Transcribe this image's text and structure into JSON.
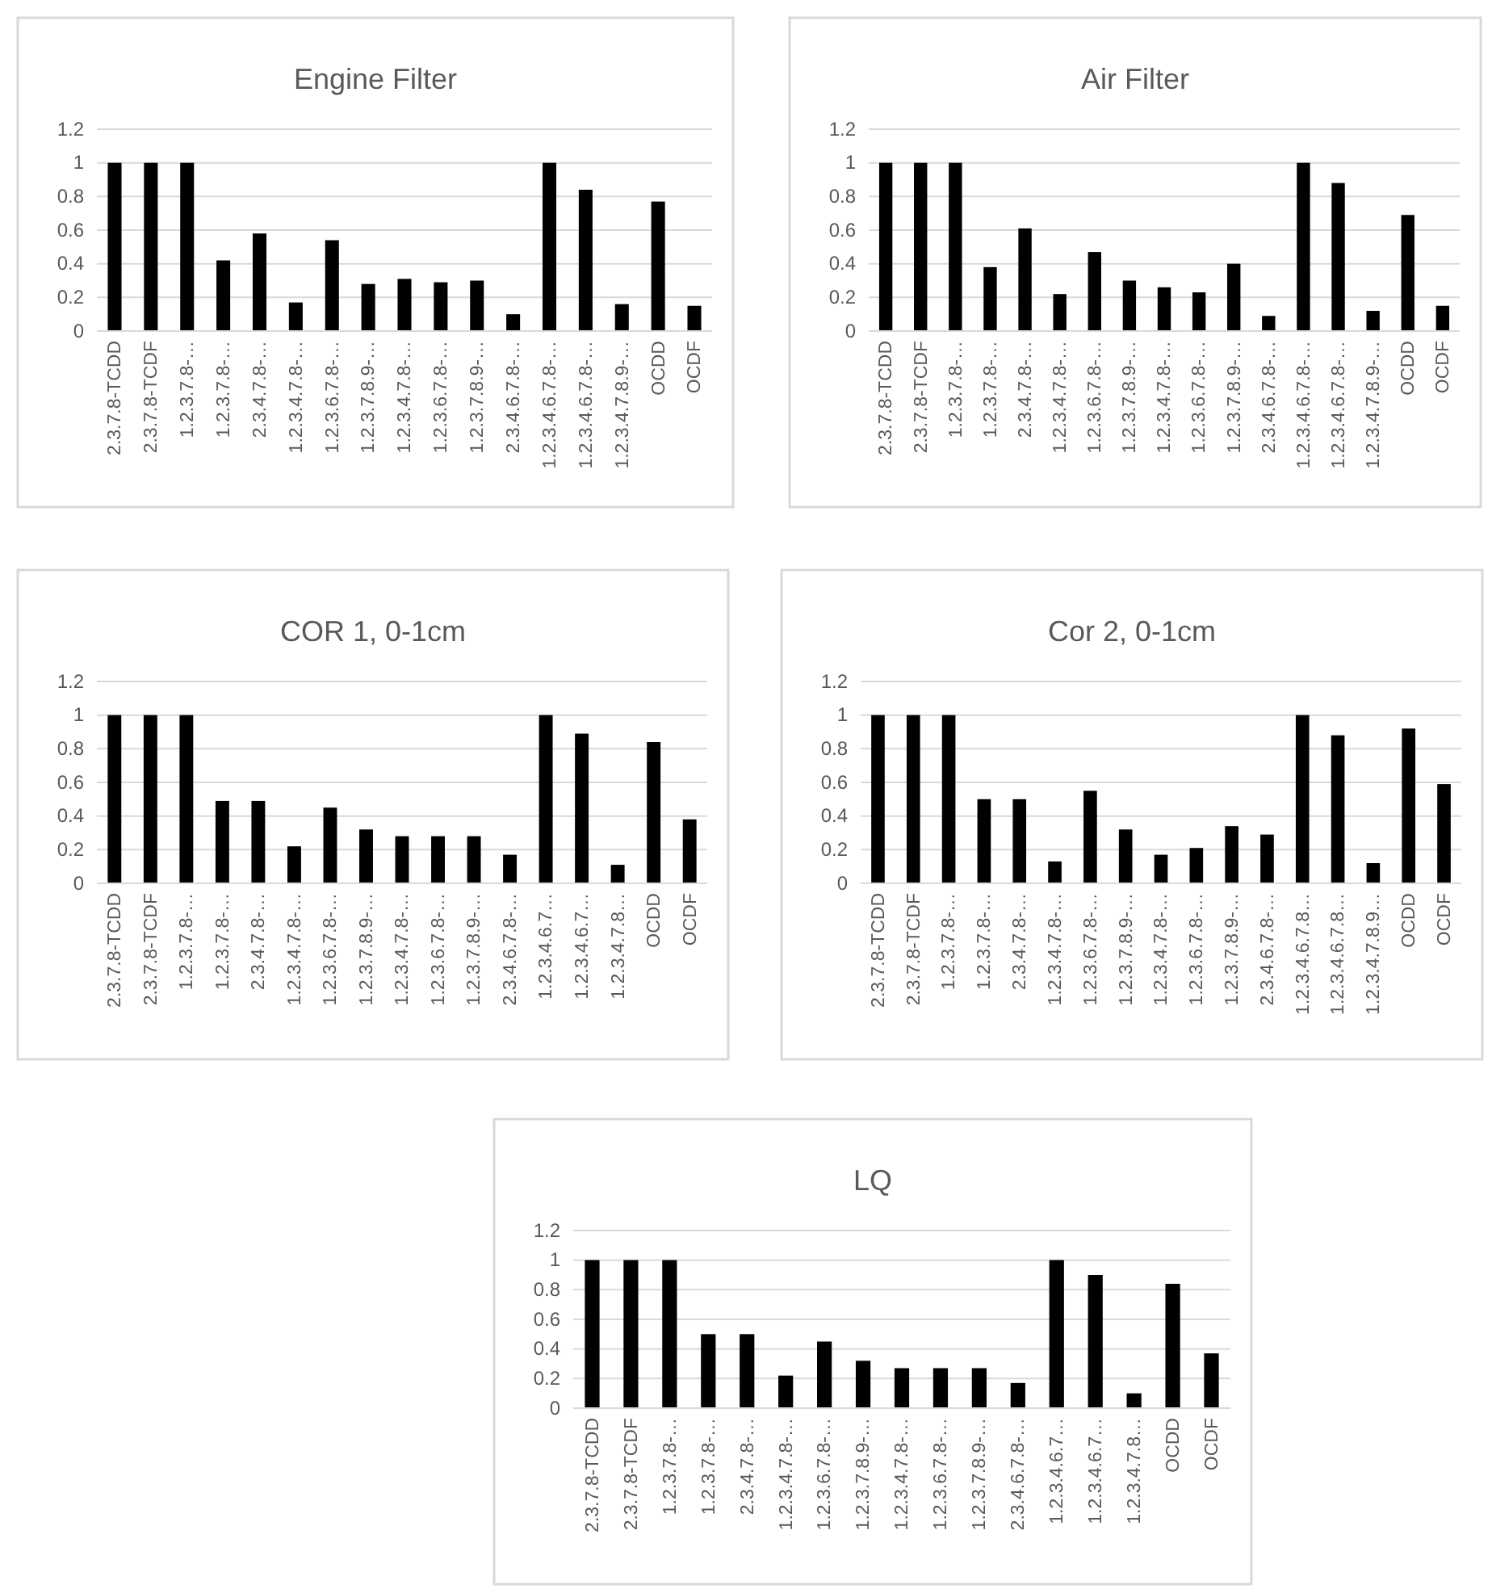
{
  "chart_data": [
    {
      "type": "bar",
      "title": "Engine Filter",
      "categories": [
        "2.3.7.8-TCDD",
        "2.3.7.8-TCDF",
        "1.2.3.7.8-…",
        "1.2.3.7.8-…",
        "2.3.4.7.8-…",
        "1.2.3.4.7.8-…",
        "1.2.3.6.7.8-…",
        "1.2.3.7.8.9-…",
        "1.2.3.4.7.8-…",
        "1.2.3.6.7.8-…",
        "1.2.3.7.8.9-…",
        "2.3.4.6.7.8-…",
        "1.2.3.4.6.7.8-…",
        "1.2.3.4.6.7.8-…",
        "1.2.3.4.7.8.9-…",
        "OCDD",
        "OCDF"
      ],
      "values": [
        1,
        1,
        1,
        0.42,
        0.58,
        0.17,
        0.54,
        0.28,
        0.31,
        0.29,
        0.3,
        0.1,
        1,
        0.84,
        0.16,
        0.77,
        0.15
      ],
      "color": "#000000",
      "ylim": [
        0,
        1.2
      ],
      "yticks": [
        0,
        0.2,
        0.4,
        0.6,
        0.8,
        1,
        1.2
      ],
      "grid": "y"
    },
    {
      "type": "bar",
      "title": "Air Filter",
      "categories": [
        "2.3.7.8-TCDD",
        "2.3.7.8-TCDF",
        "1.2.3.7.8-…",
        "1.2.3.7.8-…",
        "2.3.4.7.8-…",
        "1.2.3.4.7.8-…",
        "1.2.3.6.7.8-…",
        "1.2.3.7.8.9-…",
        "1.2.3.4.7.8-…",
        "1.2.3.6.7.8-…",
        "1.2.3.7.8.9-…",
        "2.3.4.6.7.8-…",
        "1.2.3.4.6.7.8-…",
        "1.2.3.4.6.7.8-…",
        "1.2.3.4.7.8.9-…",
        "OCDD",
        "OCDF"
      ],
      "values": [
        1,
        1,
        1,
        0.38,
        0.61,
        0.22,
        0.47,
        0.3,
        0.26,
        0.23,
        0.4,
        0.09,
        1,
        0.88,
        0.12,
        0.69,
        0.15
      ],
      "color": "#000000",
      "ylim": [
        0,
        1.2
      ],
      "yticks": [
        0,
        0.2,
        0.4,
        0.6,
        0.8,
        1,
        1.2
      ],
      "grid": "y"
    },
    {
      "type": "bar",
      "title": "COR 1, 0-1cm",
      "categories": [
        "2.3.7.8-TCDD",
        "2.3.7.8-TCDF",
        "1.2.3.7.8-…",
        "1.2.3.7.8-…",
        "2.3.4.7.8-…",
        "1.2.3.4.7.8-…",
        "1.2.3.6.7.8-…",
        "1.2.3.7.8.9-…",
        "1.2.3.4.7.8-…",
        "1.2.3.6.7.8-…",
        "1.2.3.7.8.9-…",
        "2.3.4.6.7.8-…",
        "1.2.3.4.6.7…",
        "1.2.3.4.6.7…",
        "1.2.3.4.7.8…",
        "OCDD",
        "OCDF"
      ],
      "values": [
        1,
        1,
        1,
        0.49,
        0.49,
        0.22,
        0.45,
        0.32,
        0.28,
        0.28,
        0.28,
        0.17,
        1,
        0.89,
        0.11,
        0.84,
        0.38
      ],
      "color": "#000000",
      "ylim": [
        0,
        1.2
      ],
      "yticks": [
        0,
        0.2,
        0.4,
        0.6,
        0.8,
        1,
        1.2
      ],
      "grid": "y"
    },
    {
      "type": "bar",
      "title": "Cor 2, 0-1cm",
      "categories": [
        "2.3.7.8-TCDD",
        "2.3.7.8-TCDF",
        "1.2.3.7.8-…",
        "1.2.3.7.8-…",
        "2.3.4.7.8-…",
        "1.2.3.4.7.8-…",
        "1.2.3.6.7.8-…",
        "1.2.3.7.8.9-…",
        "1.2.3.4.7.8-…",
        "1.2.3.6.7.8-…",
        "1.2.3.7.8.9-…",
        "2.3.4.6.7.8-…",
        "1.2.3.4.6.7.8…",
        "1.2.3.4.6.7.8…",
        "1.2.3.4.7.8.9…",
        "OCDD",
        "OCDF"
      ],
      "values": [
        1,
        1,
        1,
        0.5,
        0.5,
        0.13,
        0.55,
        0.32,
        0.17,
        0.21,
        0.34,
        0.29,
        1,
        0.88,
        0.12,
        0.92,
        0.59
      ],
      "color": "#000000",
      "ylim": [
        0,
        1.2
      ],
      "yticks": [
        0,
        0.2,
        0.4,
        0.6,
        0.8,
        1,
        1.2
      ],
      "grid": "y"
    },
    {
      "type": "bar",
      "title": "LQ",
      "categories": [
        "2.3.7.8-TCDD",
        "2.3.7.8-TCDF",
        "1.2.3.7.8-…",
        "1.2.3.7.8-…",
        "2.3.4.7.8-…",
        "1.2.3.4.7.8-…",
        "1.2.3.6.7.8-…",
        "1.2.3.7.8.9-…",
        "1.2.3.4.7.8-…",
        "1.2.3.6.7.8-…",
        "1.2.3.7.8.9-…",
        "2.3.4.6.7.8-…",
        "1.2.3.4.6.7…",
        "1.2.3.4.6.7…",
        "1.2.3.4.7.8…",
        "OCDD",
        "OCDF"
      ],
      "values": [
        1,
        1,
        1,
        0.5,
        0.5,
        0.22,
        0.45,
        0.32,
        0.27,
        0.27,
        0.27,
        0.17,
        1,
        0.9,
        0.1,
        0.84,
        0.37
      ],
      "color": "#000000",
      "ylim": [
        0,
        1.2
      ],
      "yticks": [
        0,
        0.2,
        0.4,
        0.6,
        0.8,
        1,
        1.2
      ],
      "grid": "y"
    }
  ]
}
